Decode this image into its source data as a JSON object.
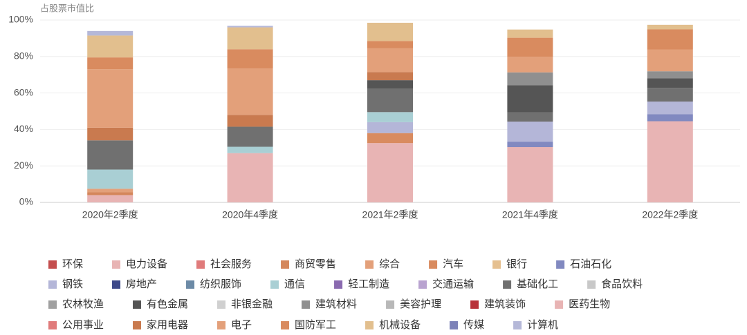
{
  "chart_data": {
    "type": "stacked_bar",
    "y_label": "占股票市值比",
    "categories": [
      "2020年2季度",
      "2020年4季度",
      "2021年2季度",
      "2021年4季度",
      "2022年2季度"
    ],
    "ylim": [
      0,
      100
    ],
    "yticks": [
      {
        "value": 0,
        "label": "0%"
      },
      {
        "value": 20,
        "label": "20%"
      },
      {
        "value": 40,
        "label": "40%"
      },
      {
        "value": 60,
        "label": "60%"
      },
      {
        "value": 80,
        "label": "80%"
      },
      {
        "value": 100,
        "label": "100%"
      }
    ],
    "grid": true,
    "series": [
      {
        "name": "环保",
        "color": "#c44e4e",
        "values": [
          0,
          0,
          0,
          0,
          0
        ]
      },
      {
        "name": "电力设备",
        "color": "#e8b4b4",
        "values": [
          4,
          27,
          32.5,
          30.3,
          44.5
        ]
      },
      {
        "name": "社会服务",
        "color": "#e07b7b",
        "values": [
          0,
          0,
          0,
          0,
          0
        ]
      },
      {
        "name": "商贸零售",
        "color": "#d4875c",
        "values": [
          1.5,
          0,
          0,
          0,
          0
        ]
      },
      {
        "name": "综合",
        "color": "#e3a07a",
        "values": [
          2,
          0,
          0,
          0,
          0
        ]
      },
      {
        "name": "汽车",
        "color": "#d98b5f",
        "values": [
          0,
          0,
          5.5,
          0,
          0
        ]
      },
      {
        "name": "银行",
        "color": "#e5c090",
        "values": [
          0,
          0,
          0,
          0,
          0
        ]
      },
      {
        "name": "石油石化",
        "color": "#8189c0",
        "values": [
          0,
          0,
          0,
          3,
          3.8
        ]
      },
      {
        "name": "钢铁",
        "color": "#b4b6d8",
        "values": [
          0,
          0,
          6,
          11,
          7
        ]
      },
      {
        "name": "房地产",
        "color": "#3e4a8a",
        "values": [
          0,
          0,
          0,
          0,
          0
        ]
      },
      {
        "name": "纺织服饰",
        "color": "#6c8aa6",
        "values": [
          0,
          0,
          0,
          0,
          0
        ]
      },
      {
        "name": "通信",
        "color": "#a9cfd4",
        "values": [
          10.5,
          3.5,
          5.5,
          0,
          0
        ]
      },
      {
        "name": "轻工制造",
        "color": "#8a6ab0",
        "values": [
          0,
          0,
          0,
          0,
          0
        ]
      },
      {
        "name": "交通运输",
        "color": "#b9a3d0",
        "values": [
          0,
          0,
          0,
          0,
          0
        ]
      },
      {
        "name": "基础化工",
        "color": "#707070",
        "values": [
          16,
          11,
          13,
          5,
          7.5
        ]
      },
      {
        "name": "食品饮料",
        "color": "#c8c8c8",
        "values": [
          0,
          0,
          0,
          0,
          0
        ]
      },
      {
        "name": "农林牧渔",
        "color": "#a0a0a0",
        "values": [
          0,
          0,
          0,
          0,
          0
        ]
      },
      {
        "name": "有色金属",
        "color": "#555555",
        "values": [
          0,
          0,
          4.5,
          15,
          5.3
        ]
      },
      {
        "name": "非银金融",
        "color": "#d0d0d0",
        "values": [
          0,
          0,
          0,
          0,
          0
        ]
      },
      {
        "name": "建筑材料",
        "color": "#8f8f8f",
        "values": [
          0,
          0,
          0,
          7,
          3.8
        ]
      },
      {
        "name": "美容护理",
        "color": "#b8b8b8",
        "values": [
          0,
          0,
          0,
          0,
          0
        ]
      },
      {
        "name": "建筑装饰",
        "color": "#b8323a",
        "values": [
          0,
          0,
          0,
          0,
          0
        ]
      },
      {
        "name": "医药生物",
        "color": "#e8b4b4",
        "values": [
          0,
          0,
          0,
          0,
          0
        ]
      },
      {
        "name": "公用事业",
        "color": "#e07b7b",
        "values": [
          0,
          0,
          0,
          0,
          0
        ]
      },
      {
        "name": "家用电器",
        "color": "#c97a4f",
        "values": [
          7,
          6.5,
          4.5,
          0,
          0
        ]
      },
      {
        "name": "电子",
        "color": "#e3a07a",
        "values": [
          32,
          25.5,
          13,
          8.5,
          12
        ]
      },
      {
        "name": "国防军工",
        "color": "#d98b5f",
        "values": [
          6.5,
          10.5,
          4,
          10.5,
          11
        ]
      },
      {
        "name": "机械设备",
        "color": "#e2bf8e",
        "values": [
          12,
          12,
          10,
          4.5,
          2.5
        ]
      },
      {
        "name": "传媒",
        "color": "#7d82b8",
        "values": [
          0,
          0,
          0,
          0,
          0
        ]
      },
      {
        "name": "计算机",
        "color": "#b5b8d8",
        "values": [
          2.5,
          0.8,
          0,
          0,
          0
        ]
      }
    ]
  }
}
